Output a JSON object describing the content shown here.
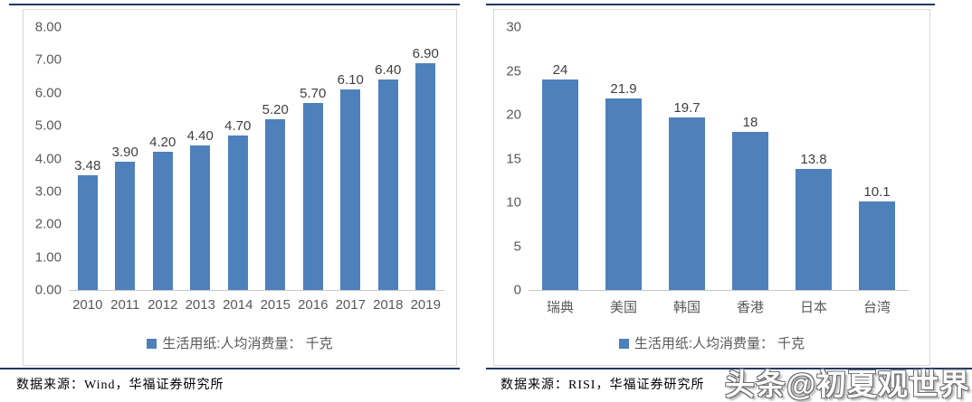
{
  "page": {
    "watermark": "头条@初夏观世界"
  },
  "chart_data": [
    {
      "type": "bar",
      "title": "",
      "xlabel": "",
      "ylabel": "",
      "categories": [
        "2010",
        "2011",
        "2012",
        "2013",
        "2014",
        "2015",
        "2016",
        "2017",
        "2018",
        "2019"
      ],
      "values": [
        3.48,
        3.9,
        4.2,
        4.4,
        4.7,
        5.2,
        5.7,
        6.1,
        6.4,
        6.9
      ],
      "data_labels": [
        "3.48",
        "3.90",
        "4.20",
        "4.40",
        "4.70",
        "5.20",
        "5.70",
        "6.10",
        "6.40",
        "6.90"
      ],
      "ylim": [
        0,
        8
      ],
      "yticks": [
        "8.00",
        "7.00",
        "6.00",
        "5.00",
        "4.00",
        "3.00",
        "2.00",
        "1.00",
        "0.00"
      ],
      "grid": false,
      "legend_position": "bottom",
      "legend": "生活用纸:人均消费量： 千克",
      "bar_color": "#4e80bc",
      "source": "数据来源：Wind，华福证券研究所"
    },
    {
      "type": "bar",
      "title": "",
      "xlabel": "",
      "ylabel": "",
      "categories": [
        "瑞典",
        "美国",
        "韩国",
        "香港",
        "日本",
        "台湾"
      ],
      "values": [
        24,
        21.9,
        19.7,
        18,
        13.8,
        10.1
      ],
      "data_labels": [
        "24",
        "21.9",
        "19.7",
        "18",
        "13.8",
        "10.1"
      ],
      "ylim": [
        0,
        30
      ],
      "yticks": [
        "30",
        "25",
        "20",
        "15",
        "10",
        "5",
        "0"
      ],
      "grid": false,
      "legend_position": "bottom",
      "legend": "生活用纸:人均消费量： 千克",
      "bar_color": "#4e80bc",
      "source": "数据来源：RISI，华福证券研究所"
    }
  ]
}
